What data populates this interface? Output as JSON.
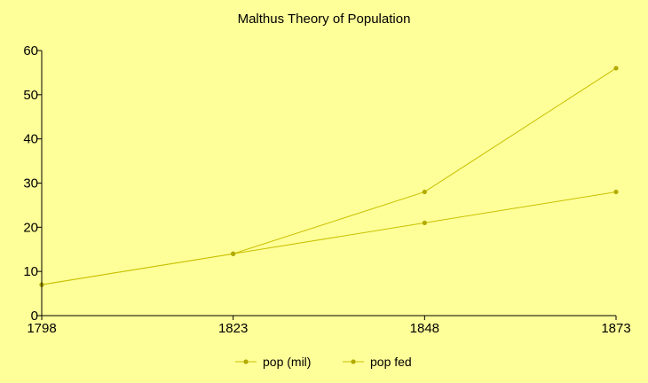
{
  "chart_data": {
    "type": "line",
    "title": "Malthus Theory of Population",
    "xlabel": "",
    "ylabel": "",
    "categories": [
      "1798",
      "1823",
      "1848",
      "1873"
    ],
    "ylim": [
      0,
      60
    ],
    "yticks": [
      0,
      10,
      20,
      30,
      40,
      50,
      60
    ],
    "grid": false,
    "legend_position": "bottom",
    "series": [
      {
        "name": "pop (mil)",
        "values": [
          7,
          14,
          28,
          56
        ]
      },
      {
        "name": "pop fed",
        "values": [
          7,
          14,
          21,
          28
        ]
      }
    ]
  },
  "colors": {
    "background": "#ffff99",
    "series_line": "#c8c000",
    "series_marker": "#b2aa00",
    "axis": "#000000",
    "text": "#000000"
  }
}
